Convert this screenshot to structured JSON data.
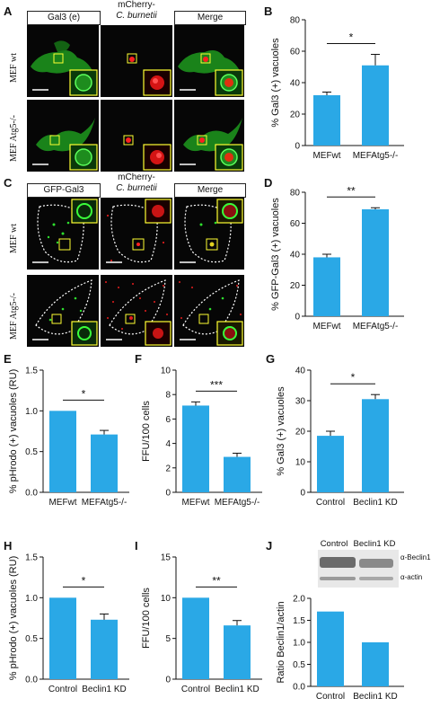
{
  "panel_letters": [
    "A",
    "B",
    "C",
    "D",
    "E",
    "F",
    "G",
    "H",
    "I",
    "J"
  ],
  "panelA": {
    "col1": "Gal3 (e)",
    "col2_line1": "mCherry-",
    "col2_line2": "C. burnetii",
    "col3": "Merge",
    "row1": "MEF wt",
    "row2": "MEF Atg5-/-"
  },
  "panelC": {
    "col1": "GFP-Gal3",
    "col2_line1": "mCherry-",
    "col2_line2": "C. burnetii",
    "col3": "Merge",
    "row1": "MEF wt",
    "row2": "MEF Atg5-/-"
  },
  "panelJ": {
    "blot_col1": "Control",
    "blot_col2": "Beclin1 KD",
    "band1": "α-Beclin1",
    "band2": "α-actin"
  },
  "colors": {
    "bar": "#2aa8e6",
    "axis": "#111111",
    "green": "#2ee02e",
    "red": "#ff2020",
    "box": "#ffff33"
  },
  "chart_data": [
    {
      "id": "B",
      "type": "bar",
      "categories": [
        "MEFwt",
        "MEFAtg5-/-"
      ],
      "values": [
        32,
        51
      ],
      "errors": [
        2,
        7
      ],
      "ylabel": "% Gal3 (+) vacuoles",
      "ylim": [
        0,
        80
      ],
      "yticks": [
        "0",
        "20",
        "40",
        "60",
        "80"
      ],
      "tickvals": [
        0,
        20,
        40,
        60,
        80
      ],
      "sig": "*"
    },
    {
      "id": "D",
      "type": "bar",
      "categories": [
        "MEFwt",
        "MEFAtg5-/-"
      ],
      "values": [
        38,
        69
      ],
      "errors": [
        2,
        1
      ],
      "ylabel": "% GFP-Gal3 (+) vacuoles",
      "ylim": [
        0,
        80
      ],
      "yticks": [
        "0",
        "20",
        "40",
        "60",
        "80"
      ],
      "tickvals": [
        0,
        20,
        40,
        60,
        80
      ],
      "sig": "**"
    },
    {
      "id": "E",
      "type": "bar",
      "categories": [
        "MEFwt",
        "MEFAtg5-/-"
      ],
      "values": [
        1.0,
        0.71
      ],
      "errors": [
        0,
        0.05
      ],
      "ylabel": "% pHrodo (+) vacuoles (RU)",
      "ylim": [
        0,
        1.5
      ],
      "yticks": [
        "0.0",
        "0.5",
        "1.0",
        "1.5"
      ],
      "tickvals": [
        0,
        0.5,
        1.0,
        1.5
      ],
      "sig": "*"
    },
    {
      "id": "F",
      "type": "bar",
      "categories": [
        "MEFwt",
        "MEFAtg5-/-"
      ],
      "values": [
        7.1,
        2.9
      ],
      "errors": [
        0.3,
        0.3
      ],
      "ylabel": "FFU/100 cells",
      "ylim": [
        0,
        10
      ],
      "yticks": [
        "0",
        "2",
        "4",
        "6",
        "8",
        "10"
      ],
      "tickvals": [
        0,
        2,
        4,
        6,
        8,
        10
      ],
      "sig": "***"
    },
    {
      "id": "G",
      "type": "bar",
      "categories": [
        "Control",
        "Beclin1 KD"
      ],
      "values": [
        18.5,
        30.5
      ],
      "errors": [
        1.5,
        1.5
      ],
      "ylabel": "% Gal3 (+) vacuoles",
      "ylim": [
        0,
        40
      ],
      "yticks": [
        "0",
        "10",
        "20",
        "30",
        "40"
      ],
      "tickvals": [
        0,
        10,
        20,
        30,
        40
      ],
      "sig": "*"
    },
    {
      "id": "H",
      "type": "bar",
      "categories": [
        "Control",
        "Beclin1 KD"
      ],
      "values": [
        1.0,
        0.73
      ],
      "errors": [
        0,
        0.07
      ],
      "ylabel": "% pHrodo (+) vacuoles (RU)",
      "ylim": [
        0,
        1.5
      ],
      "yticks": [
        "0.0",
        "0.5",
        "1.0",
        "1.5"
      ],
      "tickvals": [
        0,
        0.5,
        1.0,
        1.5
      ],
      "sig": "*"
    },
    {
      "id": "I",
      "type": "bar",
      "categories": [
        "Control",
        "Beclin1 KD"
      ],
      "values": [
        10,
        6.6
      ],
      "errors": [
        0,
        0.6
      ],
      "ylabel": "FFU/100 cells",
      "ylim": [
        0,
        15
      ],
      "yticks": [
        "0",
        "5",
        "10",
        "15"
      ],
      "tickvals": [
        0,
        5,
        10,
        15
      ],
      "sig": "**"
    },
    {
      "id": "J",
      "type": "bar",
      "categories": [
        "Control",
        "Beclin1 KD"
      ],
      "values": [
        1.7,
        1.0
      ],
      "errors": [
        0,
        0
      ],
      "ylabel": "Ratio Beclin1/actin",
      "ylim": [
        0,
        2.0
      ],
      "yticks": [
        "0.0",
        "0.5",
        "1.0",
        "1.5",
        "2.0"
      ],
      "tickvals": [
        0,
        0.5,
        1.0,
        1.5,
        2.0
      ],
      "sig": ""
    }
  ]
}
